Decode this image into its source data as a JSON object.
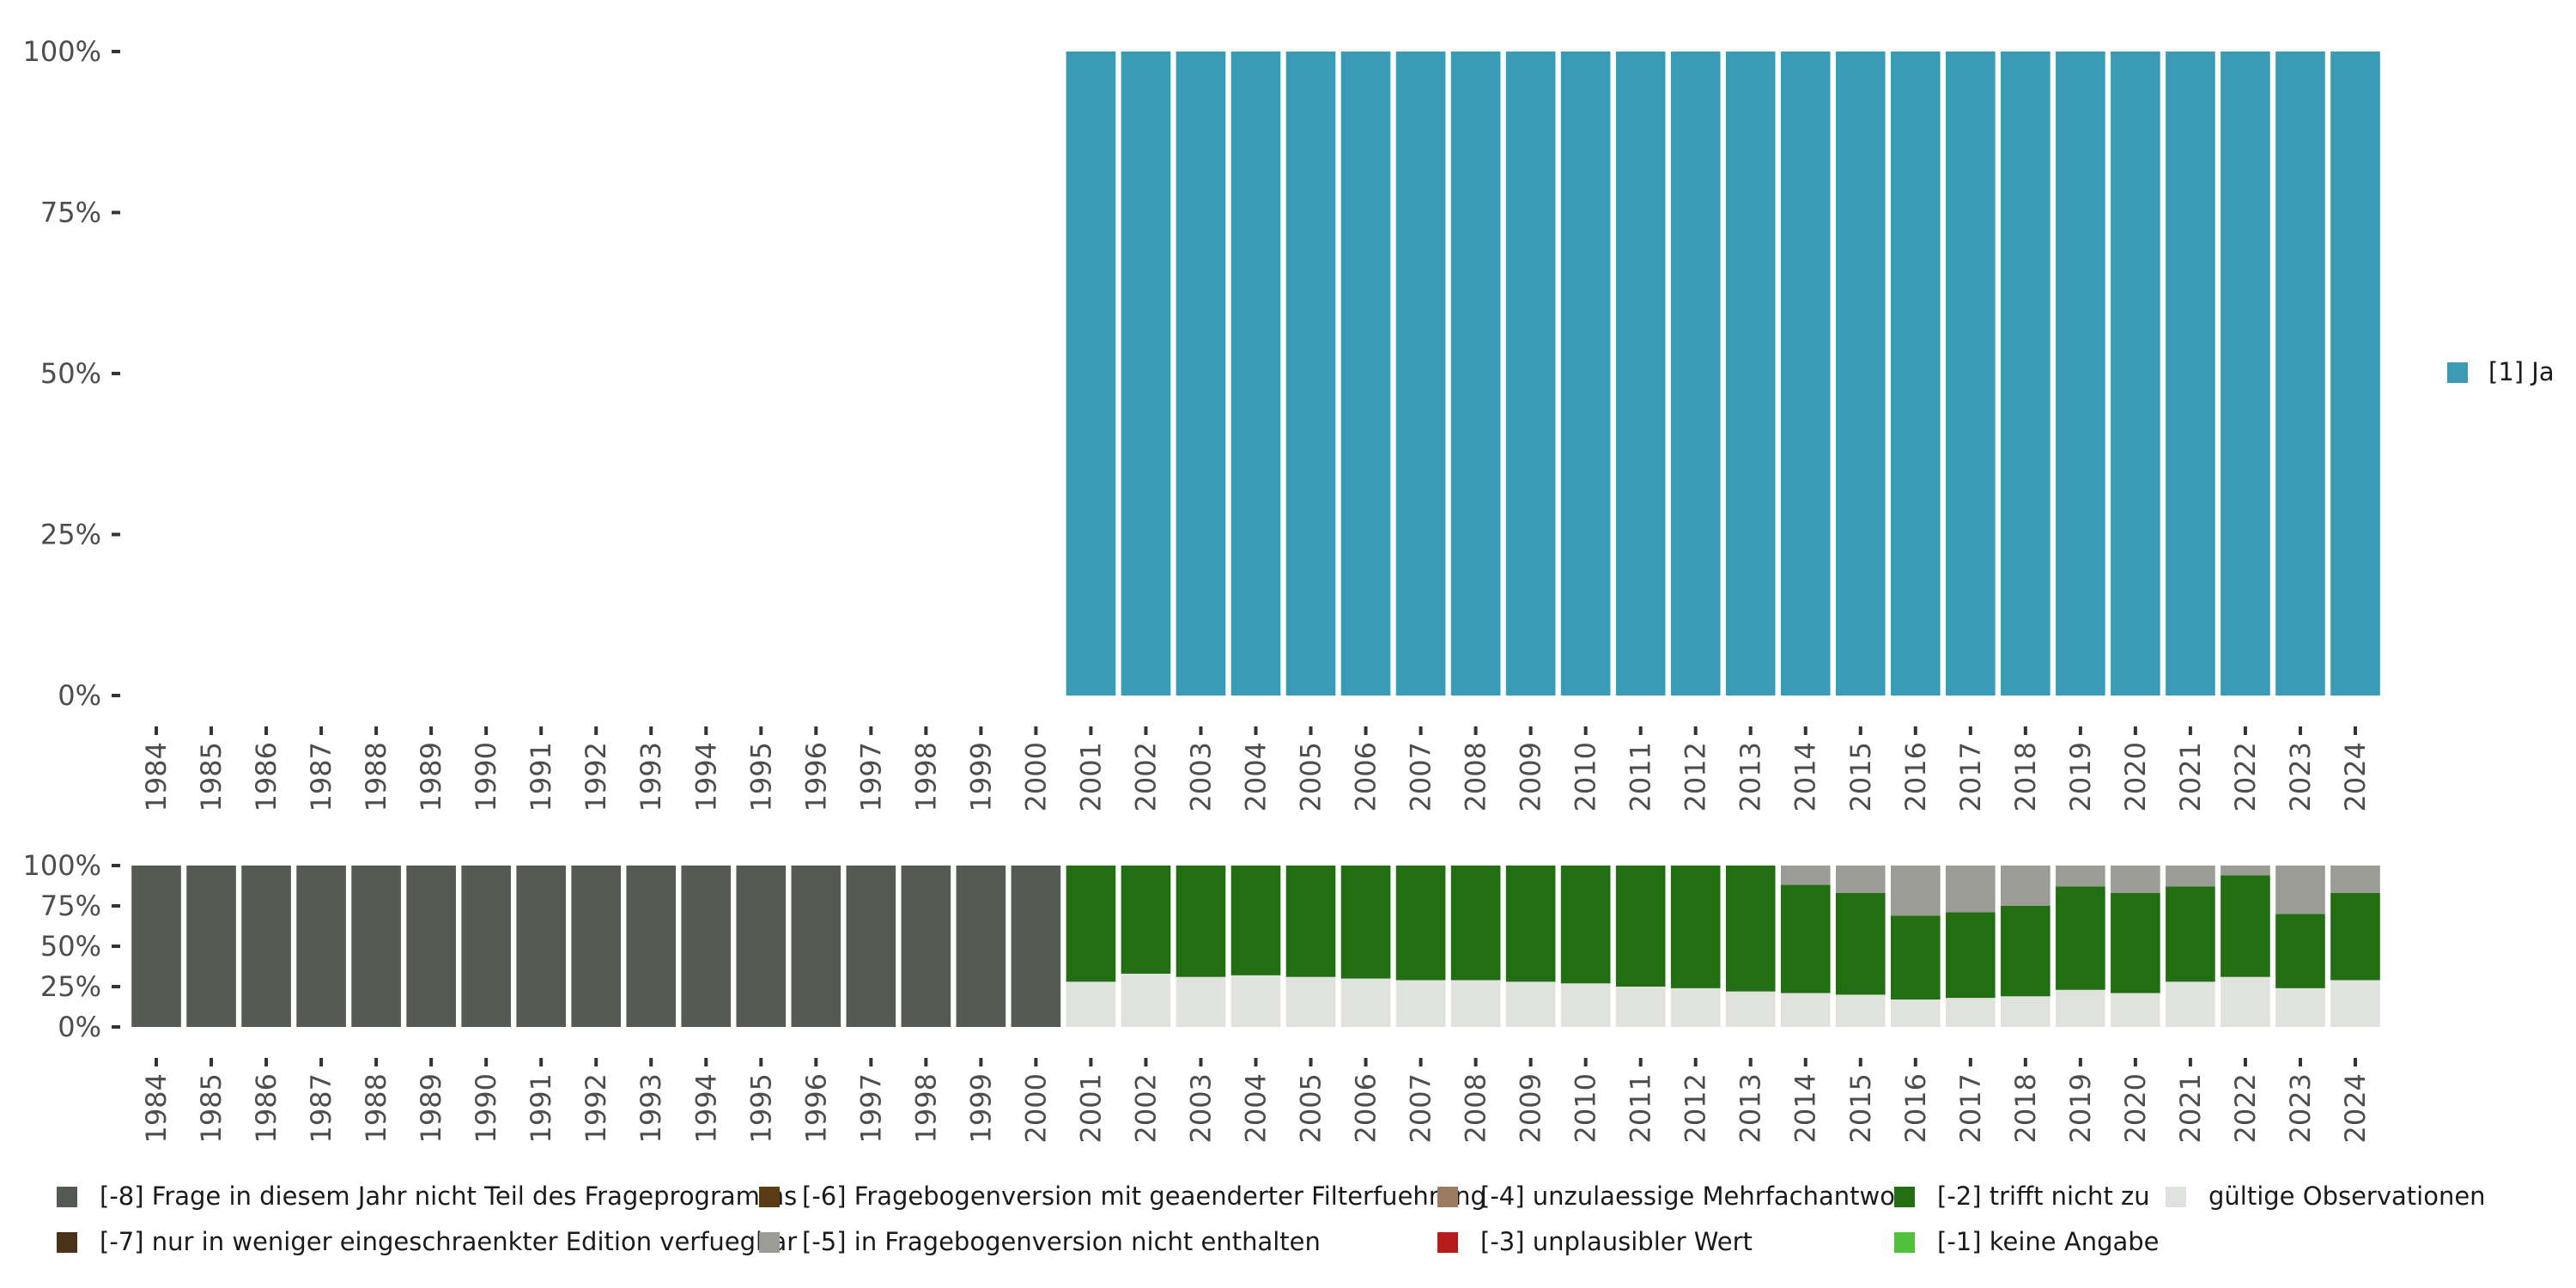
{
  "chart_data": [
    {
      "type": "bar",
      "stacked": true,
      "title": "",
      "xlabel": "",
      "ylabel": "",
      "ylim": [
        0,
        100
      ],
      "y_ticks": [
        "0%",
        "25%",
        "50%",
        "75%",
        "100%"
      ],
      "categories": [
        "1984",
        "1985",
        "1986",
        "1987",
        "1988",
        "1989",
        "1990",
        "1991",
        "1992",
        "1993",
        "1994",
        "1995",
        "1996",
        "1997",
        "1998",
        "1999",
        "2000",
        "2001",
        "2002",
        "2003",
        "2004",
        "2005",
        "2006",
        "2007",
        "2008",
        "2009",
        "2010",
        "2011",
        "2012",
        "2013",
        "2014",
        "2015",
        "2016",
        "2017",
        "2018",
        "2019",
        "2020",
        "2021",
        "2022",
        "2023",
        "2024"
      ],
      "series": [
        {
          "name": "[1] Ja",
          "color": "#3c9bb4",
          "values": [
            0,
            0,
            0,
            0,
            0,
            0,
            0,
            0,
            0,
            0,
            0,
            0,
            0,
            0,
            0,
            0,
            0,
            100,
            100,
            100,
            100,
            100,
            100,
            100,
            100,
            100,
            100,
            100,
            100,
            100,
            100,
            100,
            100,
            100,
            100,
            100,
            100,
            100,
            100,
            100,
            100
          ]
        }
      ],
      "legend_position": "right"
    },
    {
      "type": "bar",
      "stacked": true,
      "title": "",
      "xlabel": "",
      "ylabel": "",
      "ylim": [
        0,
        100
      ],
      "y_ticks": [
        "0%",
        "25%",
        "50%",
        "75%",
        "100%"
      ],
      "categories": [
        "1984",
        "1985",
        "1986",
        "1987",
        "1988",
        "1989",
        "1990",
        "1991",
        "1992",
        "1993",
        "1994",
        "1995",
        "1996",
        "1997",
        "1998",
        "1999",
        "2000",
        "2001",
        "2002",
        "2003",
        "2004",
        "2005",
        "2006",
        "2007",
        "2008",
        "2009",
        "2010",
        "2011",
        "2012",
        "2013",
        "2014",
        "2015",
        "2016",
        "2017",
        "2018",
        "2019",
        "2020",
        "2021",
        "2022",
        "2023",
        "2024"
      ],
      "series": [
        {
          "name": "gültige Observationen",
          "color": "#e0e3dd",
          "values": [
            0,
            0,
            0,
            0,
            0,
            0,
            0,
            0,
            0,
            0,
            0,
            0,
            0,
            0,
            0,
            0,
            0,
            28,
            33,
            31,
            32,
            31,
            30,
            29,
            29,
            28,
            27,
            25,
            24,
            22,
            21,
            20,
            17,
            18,
            19,
            23,
            21,
            28,
            31,
            24,
            29
          ]
        },
        {
          "name": "[-2] trifft nicht zu",
          "color": "#236e12",
          "values": [
            0,
            0,
            0,
            0,
            0,
            0,
            0,
            0,
            0,
            0,
            0,
            0,
            0,
            0,
            0,
            0,
            0,
            72,
            67,
            69,
            68,
            69,
            70,
            71,
            71,
            72,
            73,
            75,
            76,
            78,
            67,
            63,
            52,
            53,
            56,
            64,
            62,
            59,
            63,
            46,
            54
          ]
        },
        {
          "name": "[-5] in Fragebogenversion nicht enthalten",
          "color": "#9a9c95",
          "values": [
            0,
            0,
            0,
            0,
            0,
            0,
            0,
            0,
            0,
            0,
            0,
            0,
            0,
            0,
            0,
            0,
            0,
            0,
            0,
            0,
            0,
            0,
            0,
            0,
            0,
            0,
            0,
            0,
            0,
            0,
            12,
            17,
            31,
            29,
            25,
            13,
            17,
            13,
            6,
            30,
            17
          ]
        },
        {
          "name": "[-8] Frage in diesem Jahr nicht Teil des Frageprogramms",
          "color": "#555b53",
          "values": [
            100,
            100,
            100,
            100,
            100,
            100,
            100,
            100,
            100,
            100,
            100,
            100,
            100,
            100,
            100,
            100,
            100,
            0,
            0,
            0,
            0,
            0,
            0,
            0,
            0,
            0,
            0,
            0,
            0,
            0,
            0,
            0,
            0,
            0,
            0,
            0,
            0,
            0,
            0,
            0,
            0
          ]
        }
      ]
    }
  ],
  "legend_bottom": [
    {
      "label": "[-8] Frage in diesem Jahr nicht Teil des Frageprogramms",
      "color": "#555b53"
    },
    {
      "label": "[-7] nur in weniger eingeschraenkter Edition verfuegbar",
      "color": "#4a3318"
    },
    {
      "label": "[-6] Fragebogenversion mit geaenderter Filterfuehrung",
      "color": "#5c3c14"
    },
    {
      "label": "[-5] in Fragebogenversion nicht enthalten",
      "color": "#9a9c95"
    },
    {
      "label": "[-4] unzulaessige Mehrfachantwort",
      "color": "#9a7c60"
    },
    {
      "label": "[-3] unplausibler Wert",
      "color": "#b71c1c"
    },
    {
      "label": "[-2] trifft nicht zu",
      "color": "#236e12"
    },
    {
      "label": "[-1] keine Angabe",
      "color": "#52c23c"
    },
    {
      "label": "gültige Observationen",
      "color": "#e0e3dd"
    }
  ]
}
